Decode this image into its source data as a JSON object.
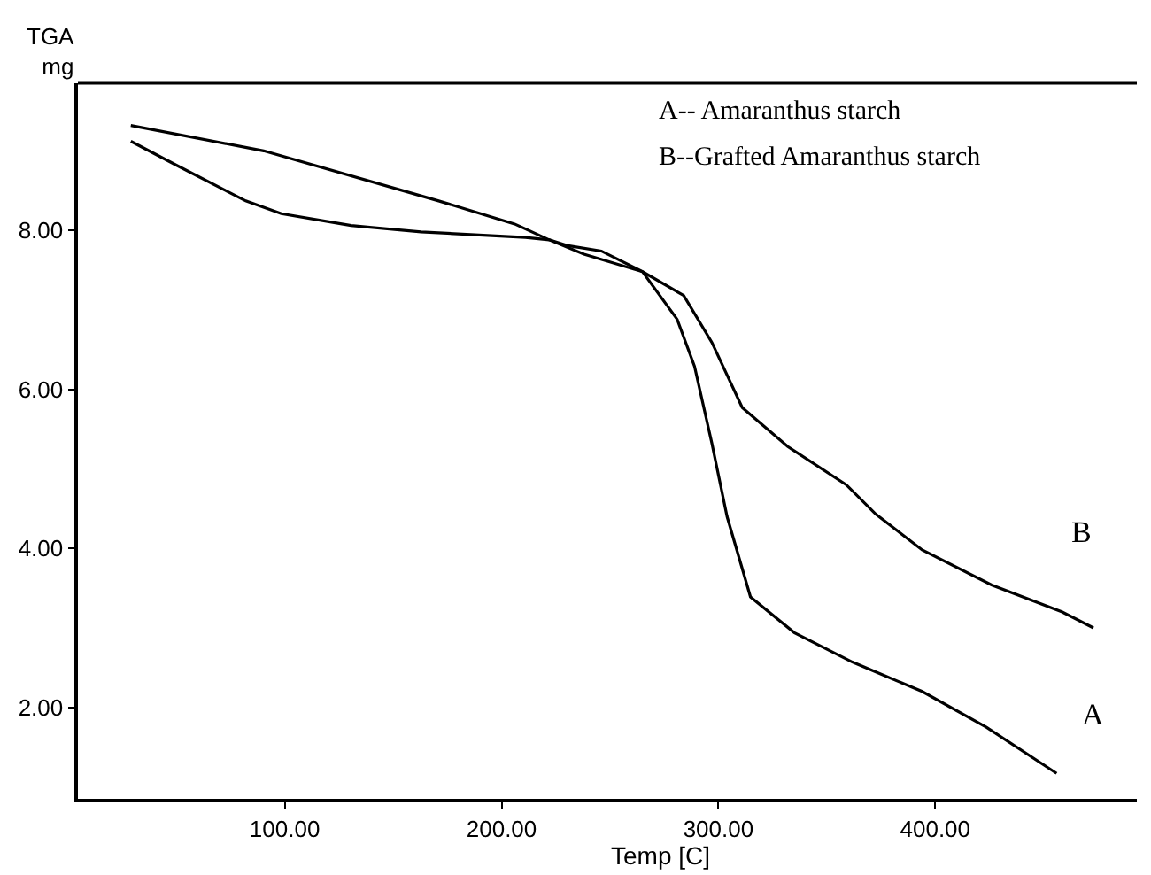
{
  "chart_data": {
    "type": "line",
    "ylabel": "TGA\nmg",
    "xlabel": "Temp [C]",
    "xlim": [
      4.6,
      493
    ],
    "ylim": [
      0.85,
      9.85
    ],
    "xticks": [
      {
        "value": 100,
        "label": "100.00"
      },
      {
        "value": 200,
        "label": "200.00"
      },
      {
        "value": 300,
        "label": "300.00"
      },
      {
        "value": 400,
        "label": "400.00"
      }
    ],
    "yticks": [
      {
        "value": 2,
        "label": "2.00"
      },
      {
        "value": 4,
        "label": "4.00"
      },
      {
        "value": 6,
        "label": "6.00"
      },
      {
        "value": 8,
        "label": "8.00"
      }
    ],
    "marker": "none",
    "line_style": "solid",
    "series": [
      {
        "color": "#000000",
        "x": [
          29,
          50,
          82,
          98.4,
          130.6,
          162.9,
          211,
          222,
          238,
          265,
          281,
          289,
          297,
          304,
          314.8,
          335,
          361.8,
          394,
          423.6,
          456
        ],
        "values": [
          9.12,
          8.82,
          8.37,
          8.21,
          8.06,
          7.98,
          7.91,
          7.88,
          7.7,
          7.48,
          6.88,
          6.29,
          5.32,
          4.4,
          3.39,
          2.94,
          2.57,
          2.2,
          1.75,
          1.17
        ]
      },
      {
        "color": "#000000",
        "x": [
          29,
          90.3,
          171,
          206,
          222,
          230,
          246,
          265,
          284,
          297,
          311,
          332,
          359,
          372.6,
          394,
          426,
          458.6,
          473
        ],
        "values": [
          9.32,
          9.0,
          8.37,
          8.08,
          7.88,
          7.81,
          7.74,
          7.48,
          7.18,
          6.59,
          5.77,
          5.28,
          4.8,
          4.43,
          3.98,
          3.54,
          3.2,
          3.0
        ]
      }
    ],
    "annotations": [
      "A-- Amaranthus starch",
      "B--Grafted Amaranthus starch",
      "A",
      "B"
    ]
  }
}
